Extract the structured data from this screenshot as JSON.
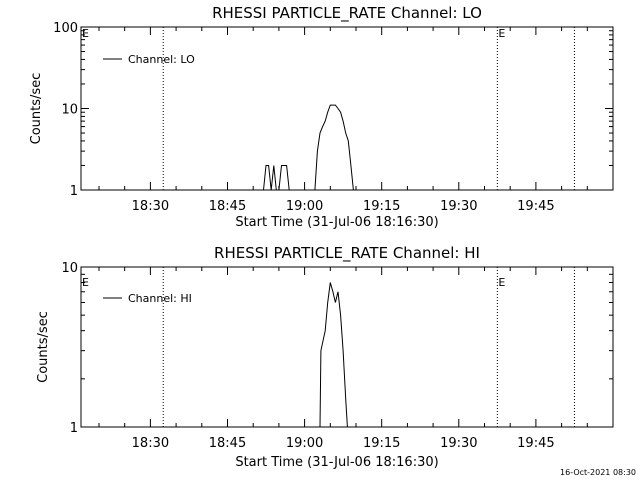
{
  "chart_data": [
    {
      "type": "line",
      "title": "RHESSI PARTICLE_RATE Channel: LO",
      "xlabel": "Start Time (31-Jul-06 18:16:30)",
      "ylabel": "Counts/sec",
      "yscale": "log",
      "ylim": [
        1,
        100
      ],
      "xlim": [
        "18:16:30",
        "20:00:00"
      ],
      "xticks": [
        "18:30",
        "18:45",
        "19:00",
        "19:15",
        "19:30",
        "19:45"
      ],
      "yticks": [
        "1",
        "10",
        "100"
      ],
      "grid": false,
      "legend": "top-left",
      "event_markers": [
        {
          "time": "18:32:30",
          "label": ""
        },
        {
          "time": "19:37:30",
          "label": "E"
        },
        {
          "time": "19:52:30",
          "label": ""
        },
        {
          "time": "18:16:30",
          "label": "E"
        }
      ],
      "series": [
        {
          "name": "Channel: LO",
          "x": [
            "18:52:00",
            "18:52:30",
            "18:53:00",
            "18:53:30",
            "18:54:00",
            "18:54:30",
            "18:55:00",
            "18:55:30",
            "18:56:00",
            "18:56:30",
            "18:57:00",
            "18:57:30",
            "18:58:00",
            "19:02:00",
            "19:02:30",
            "19:03:00",
            "19:03:30",
            "19:04:00",
            "19:04:30",
            "19:05:00",
            "19:05:30",
            "19:06:00",
            "19:06:30",
            "19:07:00",
            "19:07:30",
            "19:08:00",
            "19:08:30",
            "19:09:00",
            "19:09:30",
            "19:10:00"
          ],
          "y": [
            1,
            2,
            2,
            1,
            2,
            1,
            1,
            2,
            2,
            2,
            1,
            1,
            1,
            1,
            3,
            5,
            6,
            7,
            9,
            11,
            11,
            11,
            10,
            9,
            7,
            5,
            4,
            2,
            1,
            1
          ]
        }
      ]
    },
    {
      "type": "line",
      "title": "RHESSI PARTICLE_RATE Channel: HI",
      "xlabel": "Start Time (31-Jul-06 18:16:30)",
      "ylabel": "Counts/sec",
      "yscale": "log",
      "ylim": [
        1,
        10
      ],
      "xlim": [
        "18:16:30",
        "20:00:00"
      ],
      "xticks": [
        "18:30",
        "18:45",
        "19:00",
        "19:15",
        "19:30",
        "19:45"
      ],
      "yticks": [
        "1",
        "10"
      ],
      "grid": false,
      "legend": "top-left",
      "event_markers": [
        {
          "time": "18:32:30",
          "label": ""
        },
        {
          "time": "19:37:30",
          "label": "E"
        },
        {
          "time": "19:52:30",
          "label": ""
        },
        {
          "time": "18:16:30",
          "label": "E"
        }
      ],
      "series": [
        {
          "name": "Channel: HI",
          "x": [
            "19:03:00",
            "19:03:10",
            "19:04:00",
            "19:04:30",
            "19:05:00",
            "19:05:30",
            "19:06:00",
            "19:06:30",
            "19:07:00",
            "19:07:30",
            "19:08:00",
            "19:08:20",
            "19:09:00"
          ],
          "y": [
            1,
            3,
            4,
            6,
            8,
            7,
            6,
            7,
            5,
            3,
            1.5,
            1,
            1
          ]
        }
      ]
    }
  ],
  "footer": {
    "timestamp": "16-Oct-2021 08:30"
  }
}
